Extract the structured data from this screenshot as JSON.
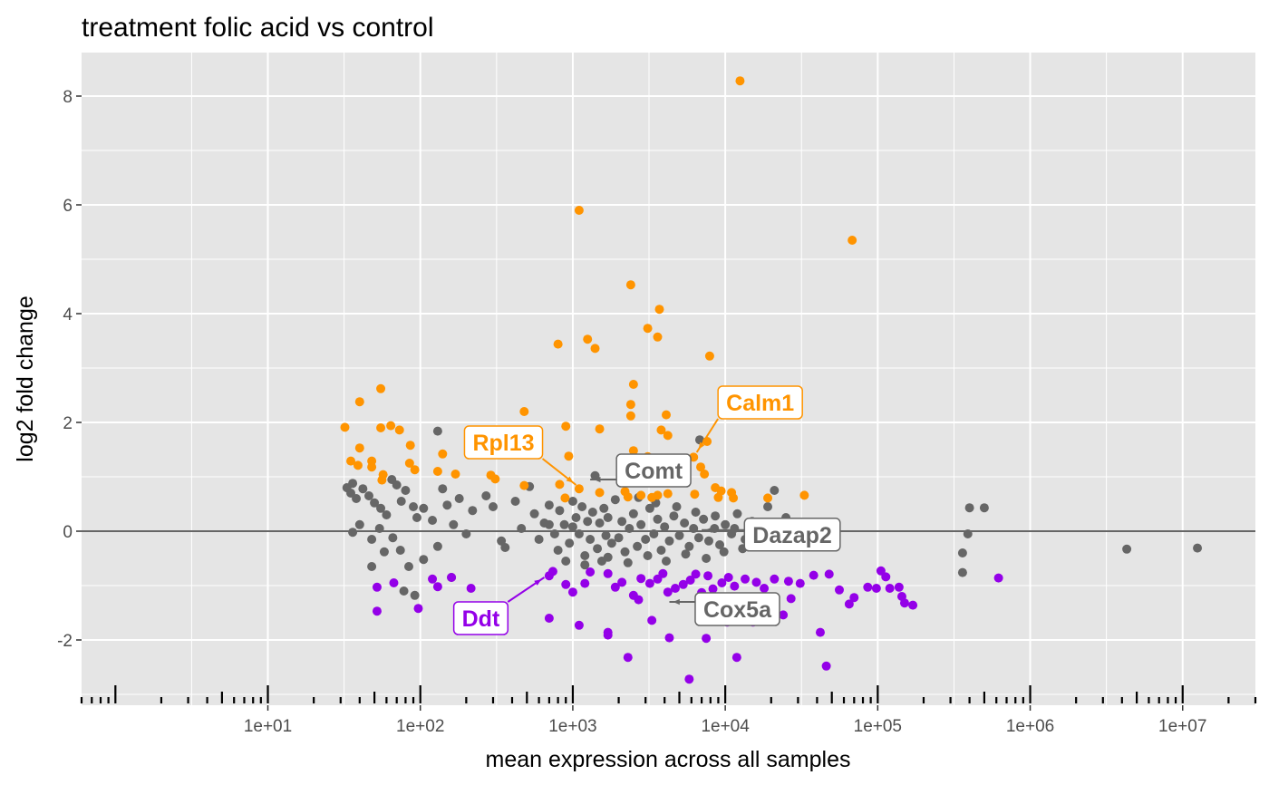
{
  "chart_data": {
    "type": "scatter",
    "title": "treatment folic acid vs control",
    "xlabel": "mean expression across all samples",
    "ylabel": "log2 fold change",
    "x_scale": "log10",
    "xlim": [
      0.6,
      30000000
    ],
    "ylim": [
      -3.2,
      8.8
    ],
    "x_ticks": [
      {
        "value": 10,
        "label": "1e+01"
      },
      {
        "value": 100,
        "label": "1e+02"
      },
      {
        "value": 1000,
        "label": "1e+03"
      },
      {
        "value": 10000,
        "label": "1e+04"
      },
      {
        "value": 100000,
        "label": "1e+05"
      },
      {
        "value": 1000000,
        "label": "1e+06"
      },
      {
        "value": 10000000,
        "label": "1e+07"
      }
    ],
    "y_ticks": [
      {
        "value": -2,
        "label": "-2"
      },
      {
        "value": 0,
        "label": "0"
      },
      {
        "value": 2,
        "label": "2"
      },
      {
        "value": 4,
        "label": "4"
      },
      {
        "value": 6,
        "label": "6"
      },
      {
        "value": 8,
        "label": "8"
      }
    ],
    "grid": true,
    "reference_line_y": 0,
    "legend": "none",
    "colors": {
      "up": "#FF9400",
      "down": "#9400E8",
      "neutral": "#666666",
      "panel": "#E5E5E5",
      "grid": "#FFFFFF",
      "reference": "#666666"
    },
    "series": [
      {
        "group": "up",
        "color": "#FF9400",
        "points": [
          [
            12500,
            8.28
          ],
          [
            1100,
            5.9
          ],
          [
            68000,
            5.35
          ],
          [
            2400,
            4.53
          ],
          [
            3700,
            4.08
          ],
          [
            3100,
            3.73
          ],
          [
            3600,
            3.57
          ],
          [
            1250,
            3.53
          ],
          [
            800,
            3.44
          ],
          [
            1400,
            3.36
          ],
          [
            7900,
            3.22
          ],
          [
            2500,
            2.7
          ],
          [
            55,
            2.62
          ],
          [
            40,
            2.38
          ],
          [
            2400,
            2.33
          ],
          [
            480,
            2.2
          ],
          [
            4100,
            2.14
          ],
          [
            2400,
            2.12
          ],
          [
            900,
            1.93
          ],
          [
            64,
            1.94
          ],
          [
            55,
            1.9
          ],
          [
            73,
            1.86
          ],
          [
            32,
            1.91
          ],
          [
            1500,
            1.88
          ],
          [
            3800,
            1.86
          ],
          [
            4200,
            1.76
          ],
          [
            7600,
            1.65
          ],
          [
            40,
            1.53
          ],
          [
            86,
            1.58
          ],
          [
            140,
            1.42
          ],
          [
            230,
            1.42
          ],
          [
            35,
            1.29
          ],
          [
            48,
            1.29
          ],
          [
            39,
            1.21
          ],
          [
            85,
            1.25
          ],
          [
            48,
            1.18
          ],
          [
            2500,
            1.48
          ],
          [
            6200,
            1.36
          ],
          [
            3100,
            1.37
          ],
          [
            940,
            1.38
          ],
          [
            4400,
            1.31
          ],
          [
            6900,
            1.18
          ],
          [
            92,
            1.13
          ],
          [
            57,
            1.04
          ],
          [
            170,
            1.05
          ],
          [
            290,
            1.03
          ],
          [
            56,
            0.94
          ],
          [
            130,
            1.1
          ],
          [
            310,
            0.96
          ],
          [
            820,
            0.86
          ],
          [
            480,
            0.84
          ],
          [
            1500,
            0.71
          ],
          [
            2200,
            0.73
          ],
          [
            2800,
            0.66
          ],
          [
            3300,
            0.62
          ],
          [
            7300,
            1.05
          ],
          [
            8600,
            0.8
          ],
          [
            9400,
            0.74
          ],
          [
            11000,
            0.71
          ],
          [
            6300,
            0.68
          ],
          [
            9000,
            0.62
          ],
          [
            11300,
            0.61
          ],
          [
            19000,
            0.61
          ],
          [
            33000,
            0.66
          ],
          [
            890,
            0.61
          ],
          [
            1100,
            0.78
          ],
          [
            2300,
            0.63
          ],
          [
            3600,
            0.66
          ],
          [
            4200,
            0.69
          ]
        ]
      },
      {
        "group": "down",
        "color": "#9400E8",
        "points": [
          [
            5800,
            -2.72
          ],
          [
            46000,
            -2.48
          ],
          [
            2300,
            -2.32
          ],
          [
            11900,
            -2.32
          ],
          [
            7500,
            -1.97
          ],
          [
            4300,
            -1.96
          ],
          [
            1700,
            -1.86
          ],
          [
            42000,
            -1.86
          ],
          [
            1700,
            -1.91
          ],
          [
            15200,
            -1.67
          ],
          [
            10300,
            -1.67
          ],
          [
            1100,
            -1.73
          ],
          [
            3300,
            -1.64
          ],
          [
            700,
            -1.6
          ],
          [
            20000,
            -1.52
          ],
          [
            24000,
            -1.54
          ],
          [
            65000,
            -1.34
          ],
          [
            170000,
            -1.36
          ],
          [
            150000,
            -1.32
          ],
          [
            70000,
            -1.22
          ],
          [
            120000,
            -1.05
          ],
          [
            138000,
            -1.03
          ],
          [
            144000,
            -1.2
          ],
          [
            86000,
            -1.03
          ],
          [
            98000,
            -1.05
          ],
          [
            105000,
            -0.73
          ],
          [
            113000,
            -0.84
          ],
          [
            620000,
            -0.86
          ],
          [
            27000,
            -1.24
          ],
          [
            52,
            -1.47
          ],
          [
            52,
            -1.03
          ],
          [
            97,
            -1.42
          ],
          [
            67,
            -0.95
          ],
          [
            120,
            -0.88
          ],
          [
            130,
            -1.02
          ],
          [
            160,
            -0.85
          ],
          [
            215,
            -1.05
          ],
          [
            700,
            -0.82
          ],
          [
            740,
            -0.74
          ],
          [
            900,
            -0.98
          ],
          [
            1000,
            -1.12
          ],
          [
            1200,
            -0.96
          ],
          [
            1300,
            -0.75
          ],
          [
            1700,
            -0.78
          ],
          [
            1900,
            -1.03
          ],
          [
            2100,
            -0.94
          ],
          [
            2500,
            -1.18
          ],
          [
            2700,
            -1.26
          ],
          [
            2800,
            -0.87
          ],
          [
            3200,
            -0.96
          ],
          [
            3600,
            -0.88
          ],
          [
            3900,
            -0.78
          ],
          [
            4200,
            -1.12
          ],
          [
            4700,
            -1.05
          ],
          [
            5300,
            -0.98
          ],
          [
            5900,
            -0.9
          ],
          [
            6400,
            -0.79
          ],
          [
            7000,
            -1.13
          ],
          [
            7700,
            -0.82
          ],
          [
            8300,
            -1.06
          ],
          [
            9500,
            -0.95
          ],
          [
            10500,
            -0.85
          ],
          [
            11500,
            -1.01
          ],
          [
            13500,
            -0.88
          ],
          [
            16000,
            -0.94
          ],
          [
            18000,
            -1.05
          ],
          [
            21000,
            -0.88
          ],
          [
            26000,
            -0.92
          ],
          [
            31000,
            -0.96
          ],
          [
            38000,
            -0.81
          ],
          [
            48000,
            -0.79
          ],
          [
            56000,
            -1.08
          ]
        ]
      },
      {
        "group": "neutral",
        "color": "#666666",
        "points": [
          [
            4300000,
            -0.33
          ],
          [
            12500000,
            -0.31
          ],
          [
            500000,
            0.43
          ],
          [
            400000,
            0.43
          ],
          [
            390000,
            -0.05
          ],
          [
            360000,
            -0.4
          ],
          [
            360000,
            -0.76
          ],
          [
            130,
            1.84
          ],
          [
            6800,
            1.68
          ],
          [
            21000,
            0.75
          ],
          [
            33,
            0.8
          ],
          [
            35,
            0.7
          ],
          [
            38,
            0.6
          ],
          [
            36,
            0.88
          ],
          [
            42,
            0.78
          ],
          [
            46,
            0.65
          ],
          [
            50,
            0.52
          ],
          [
            55,
            0.42
          ],
          [
            60,
            0.3
          ],
          [
            65,
            0.95
          ],
          [
            70,
            0.85
          ],
          [
            75,
            0.55
          ],
          [
            80,
            0.75
          ],
          [
            90,
            0.45
          ],
          [
            95,
            0.25
          ],
          [
            105,
            0.42
          ],
          [
            120,
            0.2
          ],
          [
            140,
            0.78
          ],
          [
            150,
            0.48
          ],
          [
            165,
            0.12
          ],
          [
            180,
            0.6
          ],
          [
            200,
            -0.05
          ],
          [
            220,
            0.38
          ],
          [
            36,
            -0.02
          ],
          [
            40,
            0.12
          ],
          [
            48,
            -0.15
          ],
          [
            54,
            0.05
          ],
          [
            58,
            -0.38
          ],
          [
            66,
            -0.12
          ],
          [
            74,
            -0.35
          ],
          [
            84,
            -0.65
          ],
          [
            92,
            -1.18
          ],
          [
            105,
            -0.52
          ],
          [
            130,
            -0.28
          ],
          [
            160,
            -0.85
          ],
          [
            48,
            -0.65
          ],
          [
            78,
            -1.1
          ],
          [
            270,
            0.65
          ],
          [
            300,
            0.45
          ],
          [
            340,
            -0.18
          ],
          [
            360,
            -0.3
          ],
          [
            420,
            0.55
          ],
          [
            460,
            0.05
          ],
          [
            520,
            0.82
          ],
          [
            560,
            0.32
          ],
          [
            600,
            -0.15
          ],
          [
            650,
            0.15
          ],
          [
            700,
            0.48
          ],
          [
            760,
            -0.05
          ],
          [
            820,
            0.38
          ],
          [
            880,
            0.12
          ],
          [
            950,
            -0.22
          ],
          [
            1000,
            0.55
          ],
          [
            1050,
            0.25
          ],
          [
            1100,
            -0.05
          ],
          [
            1150,
            0.45
          ],
          [
            1200,
            -0.45
          ],
          [
            1250,
            0.18
          ],
          [
            1300,
            -0.15
          ],
          [
            1350,
            0.35
          ],
          [
            1400,
            1.02
          ],
          [
            1450,
            -0.32
          ],
          [
            1500,
            0.15
          ],
          [
            1550,
            -0.55
          ],
          [
            1600,
            0.42
          ],
          [
            1650,
            -0.08
          ],
          [
            1700,
            0.25
          ],
          [
            1800,
            -0.22
          ],
          [
            1900,
            0.58
          ],
          [
            2000,
            -0.12
          ],
          [
            2100,
            0.18
          ],
          [
            2200,
            -0.38
          ],
          [
            2350,
            0.05
          ],
          [
            2500,
            0.32
          ],
          [
            2650,
            -0.28
          ],
          [
            2800,
            0.12
          ],
          [
            3000,
            -0.15
          ],
          [
            3200,
            0.42
          ],
          [
            3400,
            -0.05
          ],
          [
            3600,
            0.22
          ],
          [
            3800,
            -0.35
          ],
          [
            4000,
            0.08
          ],
          [
            4300,
            -0.18
          ],
          [
            4600,
            0.28
          ],
          [
            5000,
            -0.08
          ],
          [
            5400,
            0.15
          ],
          [
            5800,
            -0.28
          ],
          [
            6200,
            0.05
          ],
          [
            6700,
            -0.12
          ],
          [
            7200,
            0.22
          ],
          [
            7800,
            -0.18
          ],
          [
            8500,
            0.05
          ],
          [
            9200,
            -0.25
          ],
          [
            10000,
            0.12
          ],
          [
            11000,
            -0.05
          ],
          [
            12000,
            0.32
          ],
          [
            13500,
            -0.15
          ],
          [
            15000,
            0.18
          ],
          [
            17000,
            -0.08
          ],
          [
            19000,
            0.45
          ],
          [
            22000,
            -0.05
          ],
          [
            25000,
            0.25
          ],
          [
            28000,
            -0.12
          ],
          [
            900,
            -0.55
          ],
          [
            1200,
            -0.62
          ],
          [
            1700,
            -0.48
          ],
          [
            2300,
            -0.58
          ],
          [
            3100,
            -0.45
          ],
          [
            4100,
            -0.55
          ],
          [
            5500,
            -0.42
          ],
          [
            7500,
            -0.5
          ],
          [
            9800,
            -0.38
          ],
          [
            13000,
            -0.32
          ],
          [
            700,
            0.12
          ],
          [
            800,
            -0.35
          ],
          [
            1000,
            0.08
          ],
          [
            2700,
            0.62
          ],
          [
            3500,
            0.52
          ],
          [
            4800,
            0.45
          ],
          [
            6400,
            0.35
          ],
          [
            8600,
            0.28
          ],
          [
            11500,
            0.05
          ],
          [
            15500,
            -0.02
          ],
          [
            18500,
            -0.28
          ]
        ]
      }
    ],
    "annotations": [
      {
        "label": "Calm1",
        "group": "up",
        "x": 6500,
        "y": 1.45
      },
      {
        "label": "Rpl13",
        "group": "up",
        "x": 1050,
        "y": 0.85
      },
      {
        "label": "Comt",
        "group": "neutral",
        "x": 1300,
        "y": 0.95
      },
      {
        "label": "Dazap2",
        "group": "neutral",
        "x": 7000,
        "y": 0.02
      },
      {
        "label": "Cox5a",
        "group": "neutral",
        "x": 4300,
        "y": -1.3
      },
      {
        "label": "Ddt",
        "group": "down",
        "x": 650,
        "y": -0.85
      }
    ]
  }
}
